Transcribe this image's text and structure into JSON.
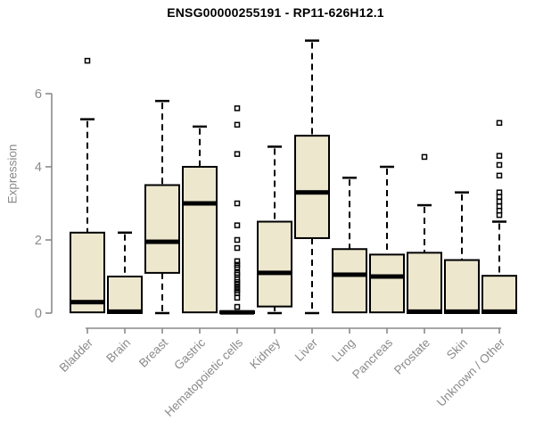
{
  "title": "ENSG00000255191 - RP11-626H12.1",
  "colors": {
    "box_fill": "#EDE7CE",
    "box_stroke": "#000000",
    "median": "#000000",
    "whisker": "#000000",
    "outlier": "#000000",
    "axis": "#8a8a8a",
    "tick_label": "#8a8a8a",
    "title": "#000000",
    "background": "#ffffff"
  },
  "chart_data": {
    "type": "boxplot",
    "title": "ENSG00000255191 - RP11-626H12.1",
    "xlabel": "",
    "ylabel": "Expression",
    "yticks": [
      0,
      2,
      4,
      6
    ],
    "ylim": [
      0,
      7.6
    ],
    "grid": false,
    "legend": false,
    "categories": [
      "Bladder",
      "Brain",
      "Breast",
      "Gastric",
      "Hematopoietic cells",
      "Kidney",
      "Liver",
      "Lung",
      "Pancreas",
      "Prostate",
      "Skin",
      "Unknown / Other"
    ],
    "series": [
      {
        "category": "Bladder",
        "whisker_low": 0.02,
        "q1": 0.02,
        "median": 0.3,
        "q3": 2.2,
        "whisker_high": 5.3,
        "outliers": [
          6.9
        ]
      },
      {
        "category": "Brain",
        "whisker_low": 0,
        "q1": 0,
        "median": 0.04,
        "q3": 1.0,
        "whisker_high": 2.2,
        "outliers": []
      },
      {
        "category": "Breast",
        "whisker_low": 0,
        "q1": 1.1,
        "median": 1.95,
        "q3": 3.5,
        "whisker_high": 5.8,
        "outliers": []
      },
      {
        "category": "Gastric",
        "whisker_low": 0.02,
        "q1": 0.02,
        "median": 3.0,
        "q3": 4.0,
        "whisker_high": 5.1,
        "outliers": []
      },
      {
        "category": "Hematopoietic cells",
        "whisker_low": 0,
        "q1": 0,
        "median": 0.02,
        "q3": 0.05,
        "whisker_high": 0.05,
        "outliers": [
          5.6,
          5.15,
          4.35,
          3.0,
          2.4,
          2.0,
          1.78,
          1.42,
          1.32,
          1.25,
          1.1,
          1.05,
          0.92,
          0.85,
          0.78,
          0.7,
          0.62,
          0.55,
          0.42,
          0.17
        ]
      },
      {
        "category": "Kidney",
        "whisker_low": 0,
        "q1": 0.18,
        "median": 1.1,
        "q3": 2.5,
        "whisker_high": 4.55,
        "outliers": []
      },
      {
        "category": "Liver",
        "whisker_low": 0,
        "q1": 2.05,
        "median": 3.3,
        "q3": 4.85,
        "whisker_high": 7.45,
        "outliers": []
      },
      {
        "category": "Lung",
        "whisker_low": 0.02,
        "q1": 0.02,
        "median": 1.05,
        "q3": 1.75,
        "whisker_high": 3.7,
        "outliers": []
      },
      {
        "category": "Pancreas",
        "whisker_low": 0.02,
        "q1": 0.02,
        "median": 1.0,
        "q3": 1.6,
        "whisker_high": 4.0,
        "outliers": []
      },
      {
        "category": "Prostate",
        "whisker_low": 0,
        "q1": 0,
        "median": 0.04,
        "q3": 1.65,
        "whisker_high": 2.95,
        "outliers": [
          4.27
        ]
      },
      {
        "category": "Skin",
        "whisker_low": 0,
        "q1": 0,
        "median": 0.04,
        "q3": 1.45,
        "whisker_high": 3.3,
        "outliers": []
      },
      {
        "category": "Unknown / Other",
        "whisker_low": 0,
        "q1": 0,
        "median": 0.04,
        "q3": 1.02,
        "whisker_high": 2.5,
        "outliers": [
          5.2,
          4.3,
          4.05,
          3.76,
          3.3,
          3.18,
          3.05,
          2.92,
          2.8,
          2.68
        ]
      }
    ]
  }
}
